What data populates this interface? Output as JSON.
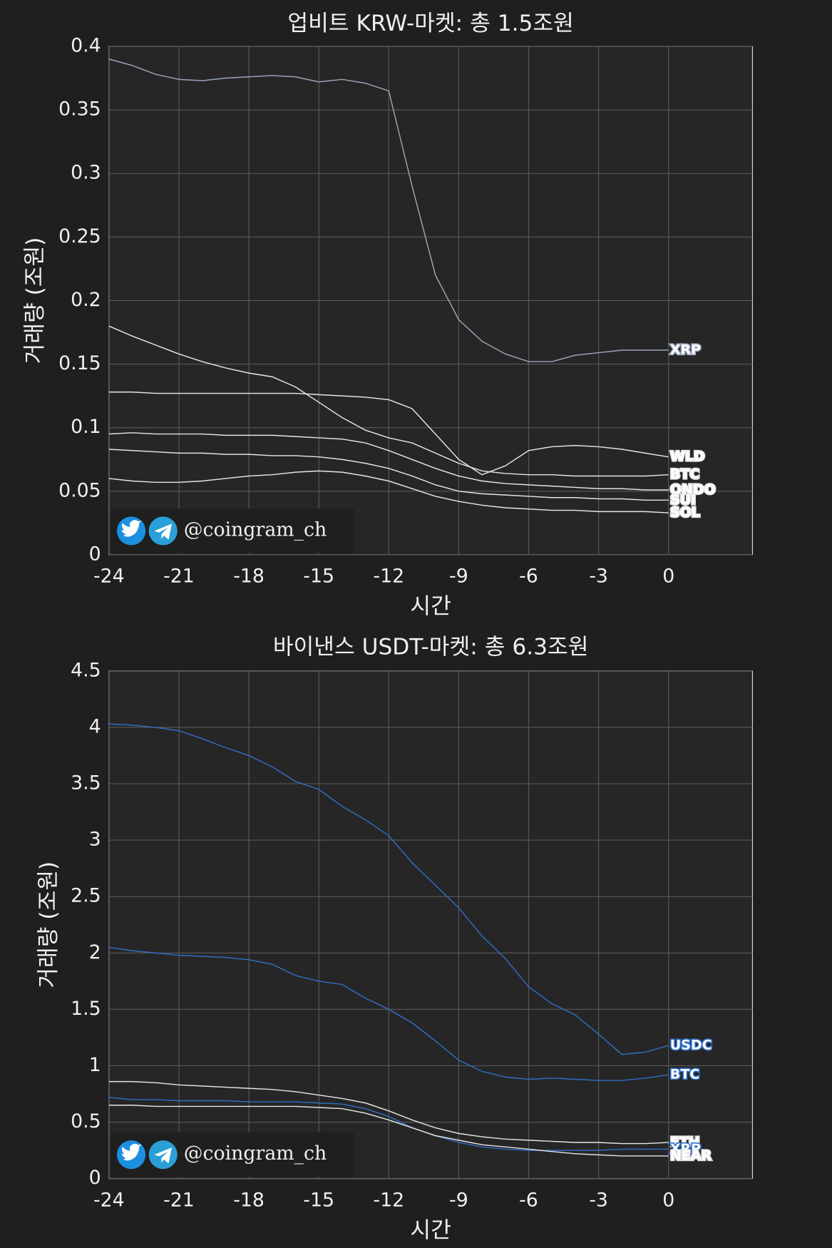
{
  "watermark": "@coingram_ch",
  "chart_data": [
    {
      "type": "line",
      "title": "업비트 KRW-마켓: 총 1.5조원",
      "xlabel": "시간",
      "ylabel": "거래량 (조원)",
      "x": [
        -24,
        -23,
        -22,
        -21,
        -20,
        -19,
        -18,
        -17,
        -16,
        -15,
        -14,
        -13,
        -12,
        -11,
        -10,
        -9,
        -8,
        -7,
        -6,
        -5,
        -4,
        -3,
        -2,
        -1,
        0
      ],
      "xlim": [
        -24,
        3.6
      ],
      "xticks": [
        -24,
        -21,
        -18,
        -15,
        -12,
        -9,
        -6,
        -3,
        0
      ],
      "ylim": [
        0,
        0.4
      ],
      "yticks": [
        0,
        0.05,
        0.1,
        0.15,
        0.2,
        0.25,
        0.3,
        0.35,
        0.4
      ],
      "grid": true,
      "series": [
        {
          "name": "XRP",
          "color": "#9aa6bd",
          "values": [
            0.39,
            0.385,
            0.378,
            0.374,
            0.373,
            0.375,
            0.376,
            0.377,
            0.376,
            0.372,
            0.374,
            0.371,
            0.365,
            0.29,
            0.22,
            0.185,
            0.168,
            0.158,
            0.152,
            0.152,
            0.157,
            0.159,
            0.161,
            0.161,
            0.161
          ]
        },
        {
          "name": "WLD",
          "color": "#e6e6e6",
          "values": [
            0.128,
            0.128,
            0.127,
            0.127,
            0.127,
            0.127,
            0.127,
            0.127,
            0.127,
            0.126,
            0.125,
            0.124,
            0.122,
            0.115,
            0.095,
            0.075,
            0.063,
            0.07,
            0.082,
            0.085,
            0.086,
            0.085,
            0.083,
            0.08,
            0.077
          ]
        },
        {
          "name": "BTC",
          "color": "#e6e6e6",
          "values": [
            0.18,
            0.172,
            0.165,
            0.158,
            0.152,
            0.147,
            0.143,
            0.14,
            0.132,
            0.12,
            0.108,
            0.098,
            0.092,
            0.088,
            0.08,
            0.072,
            0.066,
            0.064,
            0.063,
            0.063,
            0.062,
            0.062,
            0.062,
            0.062,
            0.063
          ]
        },
        {
          "name": "ONDO",
          "color": "#e6e6e6",
          "values": [
            0.095,
            0.096,
            0.095,
            0.095,
            0.095,
            0.094,
            0.094,
            0.094,
            0.093,
            0.092,
            0.091,
            0.088,
            0.082,
            0.075,
            0.068,
            0.062,
            0.058,
            0.056,
            0.055,
            0.054,
            0.053,
            0.052,
            0.052,
            0.051,
            0.051
          ]
        },
        {
          "name": "SUI",
          "color": "#e6e6e6",
          "values": [
            0.083,
            0.082,
            0.081,
            0.08,
            0.08,
            0.079,
            0.079,
            0.078,
            0.078,
            0.077,
            0.075,
            0.072,
            0.068,
            0.062,
            0.055,
            0.05,
            0.048,
            0.047,
            0.046,
            0.045,
            0.045,
            0.044,
            0.044,
            0.043,
            0.043
          ]
        },
        {
          "name": "SOL",
          "color": "#e6e6e6",
          "values": [
            0.06,
            0.058,
            0.057,
            0.057,
            0.058,
            0.06,
            0.062,
            0.063,
            0.065,
            0.066,
            0.065,
            0.062,
            0.058,
            0.052,
            0.046,
            0.042,
            0.039,
            0.037,
            0.036,
            0.035,
            0.035,
            0.034,
            0.034,
            0.034,
            0.033
          ]
        }
      ]
    },
    {
      "type": "line",
      "title": "바이낸스 USDT-마켓: 총 6.3조원",
      "xlabel": "시간",
      "ylabel": "거래량 (조원)",
      "x": [
        -24,
        -23,
        -22,
        -21,
        -20,
        -19,
        -18,
        -17,
        -16,
        -15,
        -14,
        -13,
        -12,
        -11,
        -10,
        -9,
        -8,
        -7,
        -6,
        -5,
        -4,
        -3,
        -2,
        -1,
        0
      ],
      "xlim": [
        -24,
        3.6
      ],
      "xticks": [
        -24,
        -21,
        -18,
        -15,
        -12,
        -9,
        -6,
        -3,
        0
      ],
      "ylim": [
        0,
        4.5
      ],
      "yticks": [
        0,
        0.5,
        1,
        1.5,
        2,
        2.5,
        3,
        3.5,
        4,
        4.5
      ],
      "grid": true,
      "series": [
        {
          "name": "USDC",
          "color": "#2f6fc4",
          "values": [
            4.03,
            4.02,
            4.0,
            3.97,
            3.9,
            3.82,
            3.75,
            3.65,
            3.52,
            3.45,
            3.3,
            3.18,
            3.04,
            2.8,
            2.6,
            2.4,
            2.15,
            1.95,
            1.7,
            1.55,
            1.45,
            1.28,
            1.1,
            1.12,
            1.18
          ]
        },
        {
          "name": "BTC",
          "color": "#2f6fc4",
          "values": [
            2.05,
            2.02,
            2.0,
            1.98,
            1.97,
            1.96,
            1.94,
            1.9,
            1.8,
            1.75,
            1.72,
            1.6,
            1.5,
            1.38,
            1.22,
            1.05,
            0.95,
            0.9,
            0.88,
            0.89,
            0.88,
            0.87,
            0.87,
            0.89,
            0.92
          ]
        },
        {
          "name": "ETH",
          "color": "#e6e6e6",
          "values": [
            0.86,
            0.86,
            0.85,
            0.83,
            0.82,
            0.81,
            0.8,
            0.79,
            0.77,
            0.74,
            0.71,
            0.67,
            0.6,
            0.52,
            0.45,
            0.4,
            0.37,
            0.35,
            0.34,
            0.33,
            0.32,
            0.32,
            0.31,
            0.31,
            0.32
          ]
        },
        {
          "name": "XRP",
          "color": "#2f6fc4",
          "values": [
            0.72,
            0.7,
            0.7,
            0.69,
            0.69,
            0.69,
            0.68,
            0.68,
            0.68,
            0.67,
            0.66,
            0.62,
            0.55,
            0.45,
            0.38,
            0.32,
            0.28,
            0.26,
            0.25,
            0.25,
            0.25,
            0.25,
            0.26,
            0.26,
            0.26
          ]
        },
        {
          "name": "NEAR",
          "color": "#e6e6e6",
          "values": [
            0.65,
            0.65,
            0.64,
            0.64,
            0.64,
            0.64,
            0.64,
            0.64,
            0.64,
            0.63,
            0.62,
            0.58,
            0.52,
            0.45,
            0.38,
            0.34,
            0.3,
            0.28,
            0.26,
            0.24,
            0.22,
            0.21,
            0.2,
            0.2,
            0.2
          ]
        }
      ]
    }
  ]
}
